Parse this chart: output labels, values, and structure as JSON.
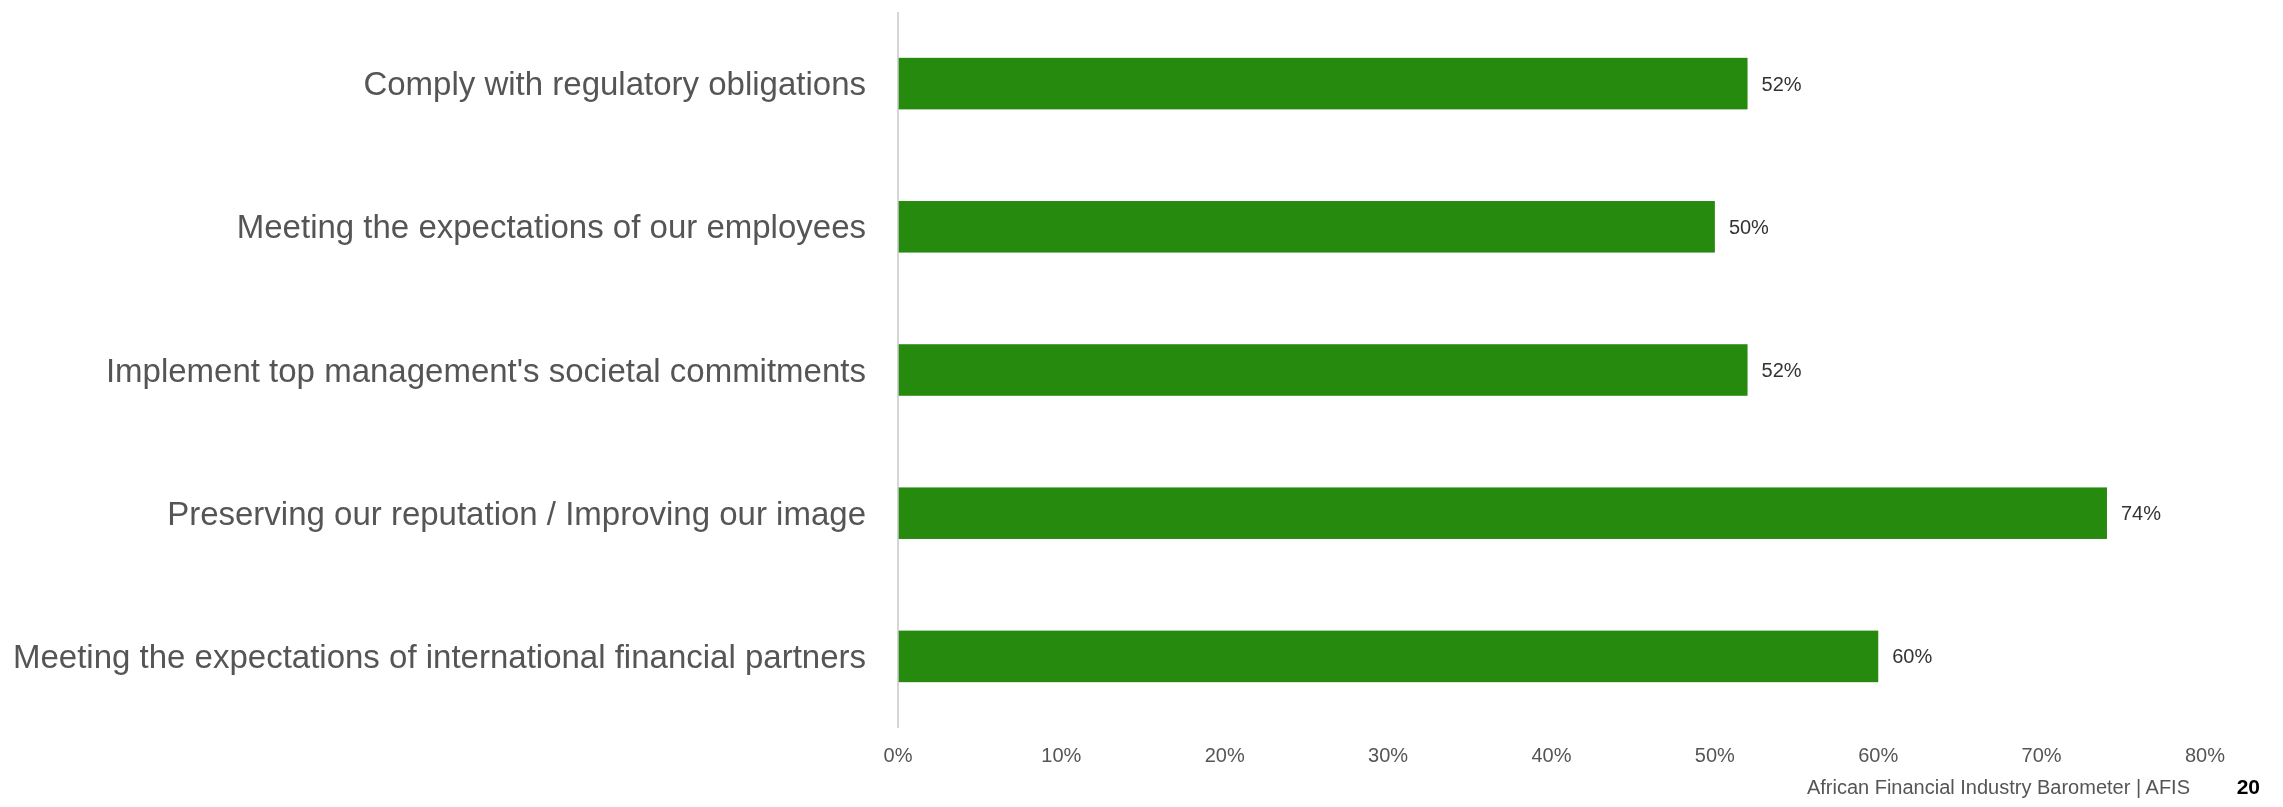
{
  "chart_data": {
    "type": "bar",
    "orientation": "horizontal",
    "categories": [
      "Comply with regulatory obligations",
      "Meeting the expectations of our employees",
      "Implement top management's societal commitments",
      "Preserving our reputation / Improving our image",
      "Meeting the expectations of international financial partners"
    ],
    "values": [
      52,
      50,
      52,
      74,
      60
    ],
    "color": "#268a0f",
    "value_labels": [
      "52%",
      "50%",
      "52%",
      "74%",
      "60%"
    ],
    "xlim": [
      0,
      80
    ],
    "xticks": [
      {
        "value": 0,
        "label": "0%"
      },
      {
        "value": 10,
        "label": "10%"
      },
      {
        "value": 20,
        "label": "20%"
      },
      {
        "value": 30,
        "label": "30%"
      },
      {
        "value": 40,
        "label": "40%"
      },
      {
        "value": 50,
        "label": "50%"
      },
      {
        "value": 60,
        "label": "60%"
      },
      {
        "value": 70,
        "label": "70%"
      },
      {
        "value": 80,
        "label": "80%"
      }
    ],
    "grid": false,
    "annotations": [
      "African Financial Industry Barometer | AFIS",
      "20"
    ]
  }
}
